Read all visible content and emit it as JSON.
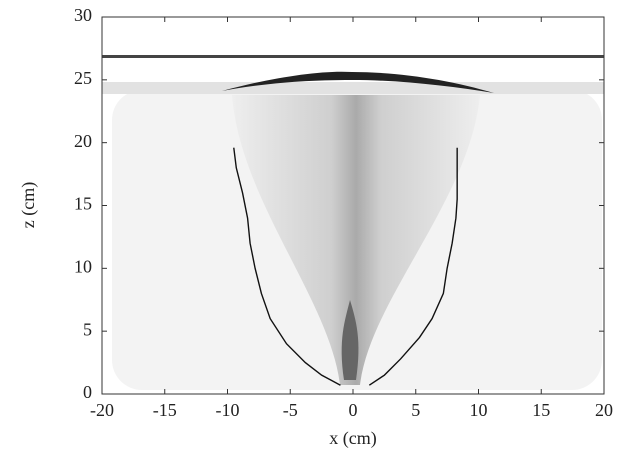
{
  "chart_data": {
    "type": "line",
    "x_label": "x (cm)",
    "y_label": "z (cm)",
    "xlim": [
      -20,
      20
    ],
    "xticks": [
      -20,
      -15,
      -10,
      -5,
      0,
      5,
      10,
      15,
      20
    ],
    "ylim": [
      0,
      30
    ],
    "yticks": [
      0,
      5,
      10,
      15,
      20,
      25,
      30
    ],
    "series": [
      {
        "color": "#111111",
        "x": [
          -9.5,
          -9.3,
          -8.8,
          -8.4,
          -8.2,
          -7.8,
          -7.3,
          -6.6,
          -5.3,
          -3.8,
          -2.5,
          -1.0
        ],
        "values": [
          19.6,
          18,
          16,
          14,
          12,
          10,
          8,
          6,
          4,
          2.5,
          1.5,
          0.7
        ]
      },
      {
        "color": "#111111",
        "x": [
          1.3,
          2.5,
          3.8,
          5.3,
          6.3,
          7.2,
          7.5,
          7.9,
          8.2,
          8.3,
          8.3
        ],
        "values": [
          0.7,
          1.5,
          2.8,
          4.5,
          6,
          8,
          10,
          12,
          14,
          15.5,
          19.6
        ]
      }
    ]
  }
}
